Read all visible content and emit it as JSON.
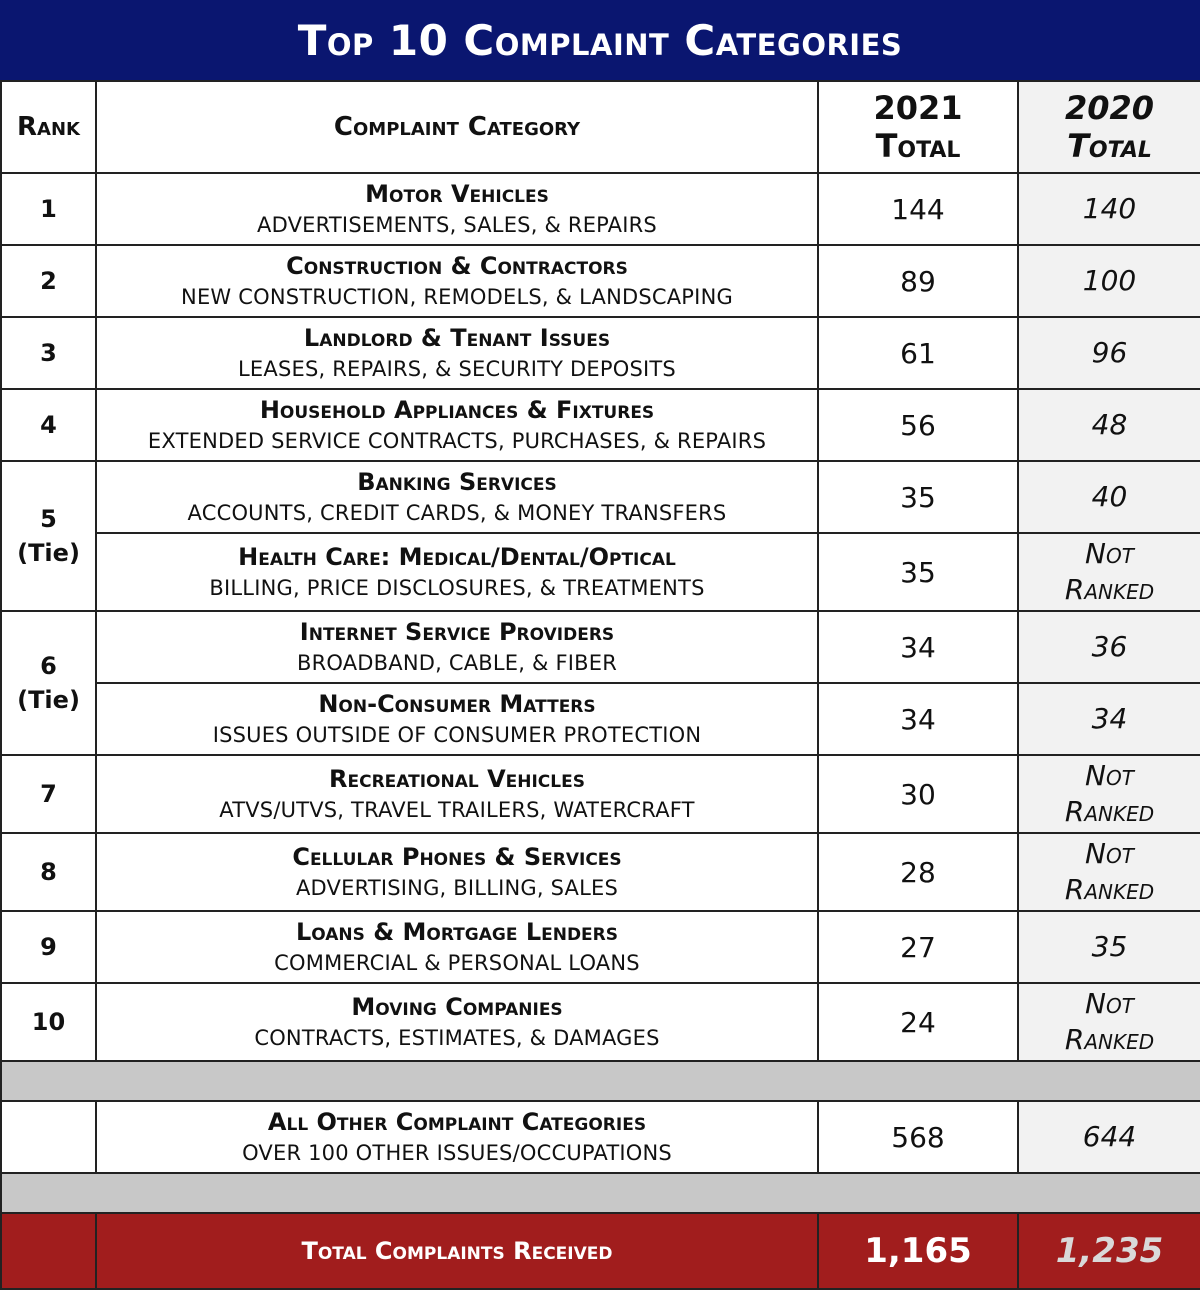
{
  "title": "Top 10 Complaint Categories",
  "headers": {
    "rank": "Rank",
    "category": "Complaint Category",
    "year_2021": "2021",
    "year_2020": "2020",
    "total": "Total"
  },
  "rows": [
    {
      "rank": "1",
      "name": "Motor Vehicles",
      "sub": "ADVERTISEMENTS, SALES, & REPAIRS",
      "v2021": "144",
      "v2020": "140"
    },
    {
      "rank": "2",
      "name": "Construction & Contractors",
      "sub": "NEW CONSTRUCTION, REMODELS, & LANDSCAPING",
      "v2021": "89",
      "v2020": "100"
    },
    {
      "rank": "3",
      "name": "Landlord & Tenant Issues",
      "sub": "LEASES, REPAIRS, & SECURITY DEPOSITS",
      "v2021": "61",
      "v2020": "96"
    },
    {
      "rank": "4",
      "name": "Household Appliances & Fixtures",
      "sub": "EXTENDED SERVICE CONTRACTS, PURCHASES, & REPAIRS",
      "v2021": "56",
      "v2020": "48"
    },
    {
      "rank": "5",
      "rank_note": "(Tie)",
      "name": "Banking Services",
      "sub": "ACCOUNTS, CREDIT CARDS, & MONEY TRANSFERS",
      "v2021": "35",
      "v2020": "40"
    },
    {
      "name": "Health Care: Medical/Dental/Optical",
      "sub": "BILLING, PRICE DISCLOSURES, & TREATMENTS",
      "v2021": "35",
      "v2020_line1": "Not",
      "v2020_line2": "Ranked"
    },
    {
      "rank": "6",
      "rank_note": "(Tie)",
      "name": "Internet Service Providers",
      "sub": "BROADBAND, CABLE, & FIBER",
      "v2021": "34",
      "v2020": "36"
    },
    {
      "name": "Non-Consumer Matters",
      "sub": "ISSUES OUTSIDE OF CONSUMER PROTECTION",
      "v2021": "34",
      "v2020": "34"
    },
    {
      "rank": "7",
      "name": "Recreational Vehicles",
      "sub": "ATVS/UTVS, TRAVEL TRAILERS, WATERCRAFT",
      "v2021": "30",
      "v2020_line1": "Not",
      "v2020_line2": "Ranked"
    },
    {
      "rank": "8",
      "name": "Cellular Phones & Services",
      "sub": "ADVERTISING, BILLING, SALES",
      "v2021": "28",
      "v2020_line1": "Not",
      "v2020_line2": "Ranked"
    },
    {
      "rank": "9",
      "name": "Loans & Mortgage Lenders",
      "sub": "COMMERCIAL & PERSONAL LOANS",
      "v2021": "27",
      "v2020": "35"
    },
    {
      "rank": "10",
      "name": "Moving Companies",
      "sub": "CONTRACTS, ESTIMATES, & DAMAGES",
      "v2021": "24",
      "v2020_line1": "Not",
      "v2020_line2": "Ranked"
    }
  ],
  "other": {
    "name": "All Other Complaint Categories",
    "sub": "OVER 100 OTHER ISSUES/OCCUPATIONS",
    "v2021": "568",
    "v2020": "644"
  },
  "total": {
    "label": "Total Complaints Received",
    "v2021": "1,165",
    "v2020": "1,235"
  }
}
